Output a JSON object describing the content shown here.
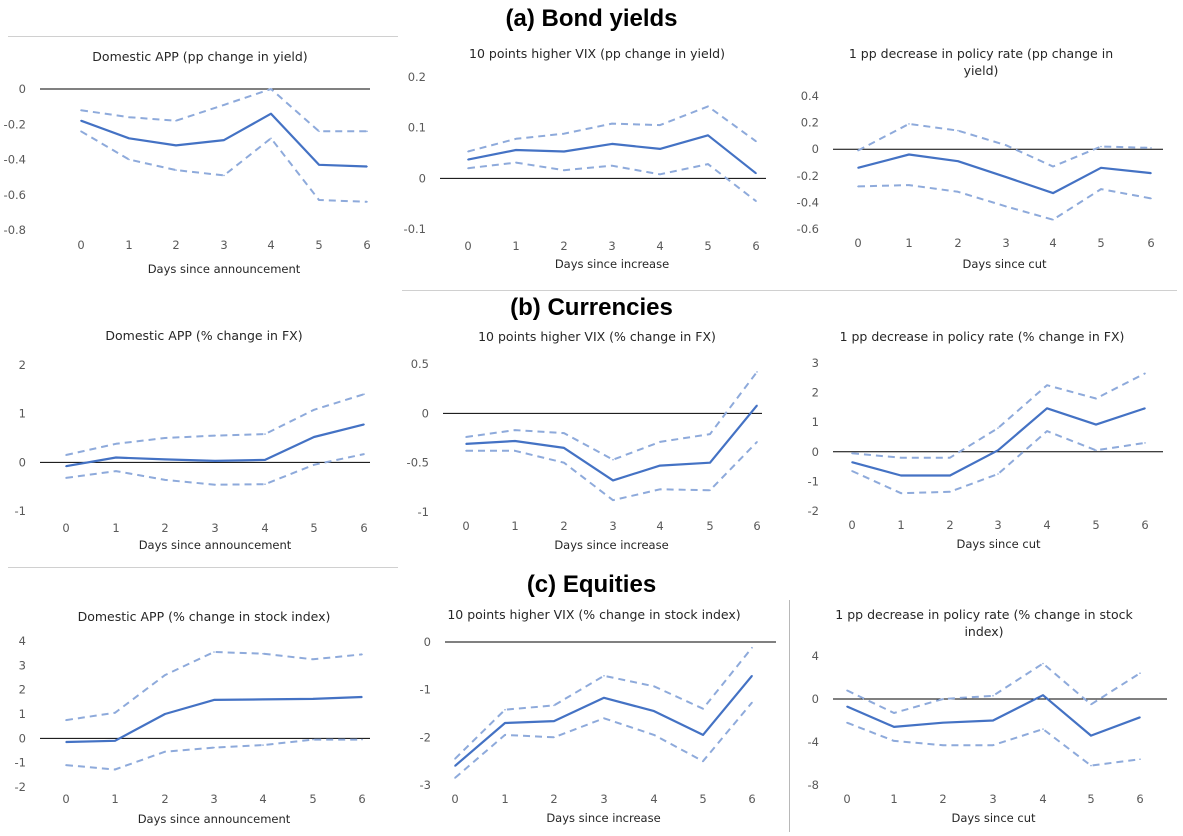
{
  "sections": {
    "a": "(a) Bond yields",
    "b": "(b) Currencies",
    "c": "(c) Equities"
  },
  "colors": {
    "line": "#4472c4",
    "band": "#8eaadb",
    "axis": "#000000",
    "text": "#595959"
  },
  "chart_data": [
    {
      "id": "a1",
      "type": "line",
      "title": [
        "Domestic APP (pp change in yield)"
      ],
      "xlabel": "Days since announcement",
      "x": [
        0,
        1,
        2,
        3,
        4,
        5,
        6
      ],
      "ylim": [
        -0.8,
        0
      ],
      "yticks": [
        0,
        -0.2,
        -0.4,
        -0.6,
        -0.8
      ],
      "ytick_labels": [
        "0",
        "-0.2",
        "-0.4",
        "-0.6",
        "-0.8"
      ],
      "series": [
        {
          "role": "estimate",
          "values": [
            -0.18,
            -0.28,
            -0.32,
            -0.29,
            -0.14,
            -0.43,
            -0.44
          ]
        },
        {
          "role": "upper",
          "values": [
            -0.12,
            -0.16,
            -0.18,
            -0.09,
            0.0,
            -0.24,
            -0.24
          ]
        },
        {
          "role": "lower",
          "values": [
            -0.24,
            -0.4,
            -0.46,
            -0.49,
            -0.28,
            -0.63,
            -0.64
          ]
        }
      ]
    },
    {
      "id": "a2",
      "type": "line",
      "title": [
        "10 points higher VIX (pp change in yield)"
      ],
      "xlabel": "Days since increase",
      "x": [
        0,
        1,
        2,
        3,
        4,
        5,
        6
      ],
      "ylim": [
        -0.1,
        0.2
      ],
      "yticks": [
        0.2,
        0.1,
        0,
        -0.1
      ],
      "ytick_labels": [
        "0.2",
        "0.1",
        "0",
        "-0.1"
      ],
      "series": [
        {
          "role": "estimate",
          "values": [
            0.037,
            0.056,
            0.053,
            0.068,
            0.058,
            0.085,
            0.01
          ]
        },
        {
          "role": "upper",
          "values": [
            0.053,
            0.078,
            0.088,
            0.108,
            0.105,
            0.142,
            0.073
          ]
        },
        {
          "role": "lower",
          "values": [
            0.02,
            0.031,
            0.016,
            0.025,
            0.008,
            0.028,
            -0.045
          ]
        }
      ]
    },
    {
      "id": "a3",
      "type": "line",
      "title": [
        "1 pp decrease in policy rate (pp change in",
        "yield)"
      ],
      "xlabel": "Days since cut",
      "x": [
        0,
        1,
        2,
        3,
        4,
        5,
        6
      ],
      "ylim": [
        -0.6,
        0.4
      ],
      "yticks": [
        0.4,
        0.2,
        0,
        -0.2,
        -0.4,
        -0.6
      ],
      "ytick_labels": [
        "0.4",
        "0.2",
        "0",
        "-0.2",
        "-0.4",
        "-0.6"
      ],
      "series": [
        {
          "role": "estimate",
          "values": [
            -0.14,
            -0.04,
            -0.09,
            -0.21,
            -0.33,
            -0.14,
            -0.18
          ]
        },
        {
          "role": "upper",
          "values": [
            -0.01,
            0.19,
            0.14,
            0.03,
            -0.13,
            0.02,
            0.01
          ]
        },
        {
          "role": "lower",
          "values": [
            -0.28,
            -0.27,
            -0.32,
            -0.43,
            -0.53,
            -0.3,
            -0.37
          ]
        }
      ]
    },
    {
      "id": "b1",
      "type": "line",
      "title": [
        "Domestic APP (% change in FX)"
      ],
      "xlabel": "Days since announcement",
      "x": [
        0,
        1,
        2,
        3,
        4,
        5,
        6
      ],
      "ylim": [
        -1,
        2
      ],
      "yticks": [
        2,
        1,
        0,
        -1
      ],
      "ytick_labels": [
        "2",
        "1",
        "0",
        "-1"
      ],
      "series": [
        {
          "role": "estimate",
          "values": [
            -0.08,
            0.1,
            0.06,
            0.03,
            0.05,
            0.52,
            0.78
          ]
        },
        {
          "role": "upper",
          "values": [
            0.15,
            0.38,
            0.5,
            0.55,
            0.58,
            1.08,
            1.4
          ]
        },
        {
          "role": "lower",
          "values": [
            -0.32,
            -0.18,
            -0.36,
            -0.46,
            -0.45,
            -0.05,
            0.17
          ]
        }
      ]
    },
    {
      "id": "b2",
      "type": "line",
      "title": [
        "10 points higher VIX (% change in FX)"
      ],
      "xlabel": "Days since increase",
      "x": [
        0,
        1,
        2,
        3,
        4,
        5,
        6
      ],
      "ylim": [
        -1,
        0.5
      ],
      "yticks": [
        0.5,
        0,
        -0.5,
        -1
      ],
      "ytick_labels": [
        "0.5",
        "0",
        "-0.5",
        "-1"
      ],
      "series": [
        {
          "role": "estimate",
          "values": [
            -0.31,
            -0.28,
            -0.35,
            -0.68,
            -0.53,
            -0.5,
            0.08
          ]
        },
        {
          "role": "upper",
          "values": [
            -0.24,
            -0.17,
            -0.2,
            -0.47,
            -0.29,
            -0.21,
            0.42
          ]
        },
        {
          "role": "lower",
          "values": [
            -0.38,
            -0.38,
            -0.5,
            -0.88,
            -0.77,
            -0.78,
            -0.29
          ]
        }
      ]
    },
    {
      "id": "b3",
      "type": "line",
      "title": [
        "1 pp decrease in policy rate (% change in FX)"
      ],
      "xlabel": "Days since cut",
      "x": [
        0,
        1,
        2,
        3,
        4,
        5,
        6
      ],
      "ylim": [
        -2,
        3
      ],
      "yticks": [
        3,
        2,
        1,
        0,
        -1,
        -2
      ],
      "ytick_labels": [
        "3",
        "2",
        "1",
        "0",
        "-1",
        "-2"
      ],
      "series": [
        {
          "role": "estimate",
          "values": [
            -0.35,
            -0.8,
            -0.8,
            0.05,
            1.47,
            0.92,
            1.47
          ]
        },
        {
          "role": "upper",
          "values": [
            -0.05,
            -0.2,
            -0.2,
            0.8,
            2.25,
            1.8,
            2.65
          ]
        },
        {
          "role": "lower",
          "values": [
            -0.65,
            -1.4,
            -1.35,
            -0.75,
            0.7,
            0.05,
            0.3
          ]
        }
      ]
    },
    {
      "id": "c1",
      "type": "line",
      "title": [
        "Domestic APP (% change in stock index)"
      ],
      "xlabel": "Days since announcement",
      "x": [
        0,
        1,
        2,
        3,
        4,
        5,
        6
      ],
      "ylim": [
        -2,
        4
      ],
      "yticks": [
        4,
        3,
        2,
        1,
        0,
        -1,
        -2
      ],
      "ytick_labels": [
        "4",
        "3",
        "2",
        "1",
        "0",
        "-1",
        "-2"
      ],
      "series": [
        {
          "role": "estimate",
          "values": [
            -0.15,
            -0.1,
            1.0,
            1.58,
            1.6,
            1.62,
            1.7
          ]
        },
        {
          "role": "upper",
          "values": [
            0.75,
            1.05,
            2.6,
            3.55,
            3.48,
            3.25,
            3.45
          ]
        },
        {
          "role": "lower",
          "values": [
            -1.1,
            -1.28,
            -0.55,
            -0.38,
            -0.28,
            -0.05,
            -0.05
          ]
        }
      ]
    },
    {
      "id": "c2",
      "type": "line",
      "title": [
        "10 points higher VIX (% change in stock index)"
      ],
      "xlabel": "Days since increase",
      "x": [
        0,
        1,
        2,
        3,
        4,
        5,
        6
      ],
      "ylim": [
        -3,
        0
      ],
      "yticks": [
        0,
        -1,
        -2,
        -3
      ],
      "ytick_labels": [
        "0",
        "-1",
        "-2",
        "-3"
      ],
      "series": [
        {
          "role": "estimate",
          "values": [
            -2.6,
            -1.7,
            -1.66,
            -1.17,
            -1.45,
            -1.95,
            -0.71
          ]
        },
        {
          "role": "upper",
          "values": [
            -2.45,
            -1.42,
            -1.33,
            -0.71,
            -0.93,
            -1.4,
            -0.12
          ]
        },
        {
          "role": "lower",
          "values": [
            -2.85,
            -1.95,
            -2.0,
            -1.6,
            -1.95,
            -2.5,
            -1.27
          ]
        }
      ]
    },
    {
      "id": "c3",
      "type": "line",
      "title": [
        "1 pp decrease in policy rate (% change in stock",
        "index)"
      ],
      "xlabel": "Days since cut",
      "x": [
        0,
        1,
        2,
        3,
        4,
        5,
        6
      ],
      "ylim": [
        -8,
        4
      ],
      "yticks": [
        4,
        0,
        -4,
        -8
      ],
      "ytick_labels": [
        "4",
        "0",
        "-4",
        "-8"
      ],
      "series": [
        {
          "role": "estimate",
          "values": [
            -0.7,
            -2.6,
            -2.2,
            -2.0,
            0.35,
            -3.4,
            -1.7
          ]
        },
        {
          "role": "upper",
          "values": [
            0.8,
            -1.3,
            0.0,
            0.3,
            3.3,
            -0.5,
            2.4
          ]
        },
        {
          "role": "lower",
          "values": [
            -2.2,
            -3.9,
            -4.3,
            -4.3,
            -2.8,
            -6.2,
            -5.6
          ]
        }
      ]
    }
  ]
}
